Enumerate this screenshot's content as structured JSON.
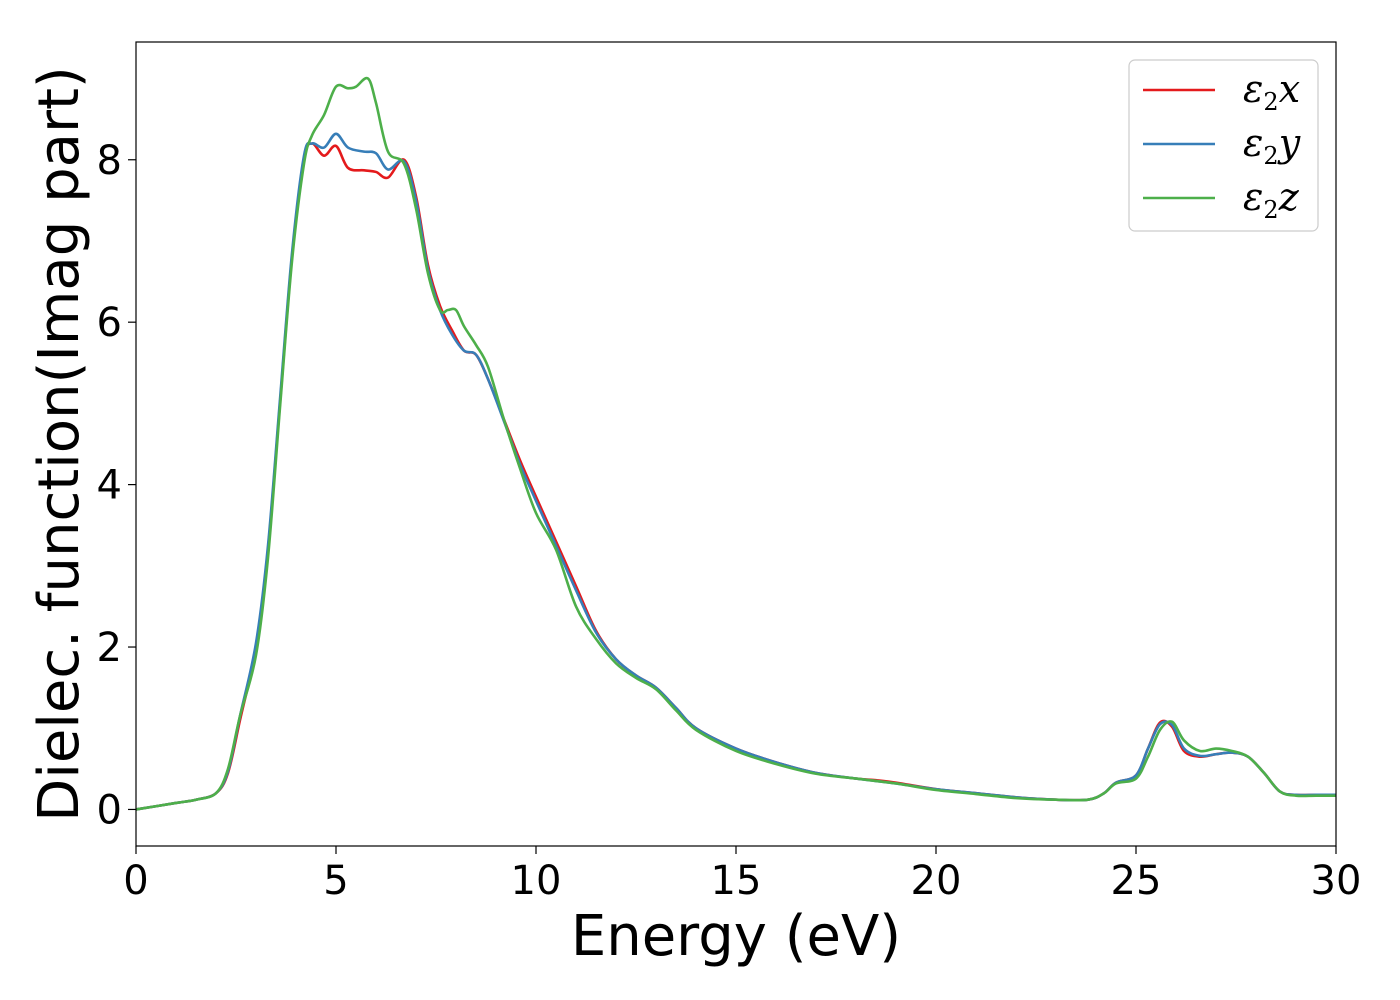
{
  "chart_data": {
    "type": "line",
    "title": "",
    "xlabel": "Energy (eV)",
    "ylabel": "Dielec. function(Imag part)",
    "xlim": [
      0,
      30
    ],
    "ylim": [
      -0.45,
      9.45
    ],
    "xticks": [
      0,
      5,
      10,
      15,
      20,
      25,
      30
    ],
    "yticks": [
      0,
      2,
      4,
      6,
      8
    ],
    "grid": false,
    "legend_position": "top-right",
    "series": [
      {
        "name": "ε2x",
        "legend_symbol": "ε",
        "legend_sub": "2",
        "legend_var": "x",
        "color": "#e41a1c",
        "x": [
          0,
          1,
          1.5,
          2.0,
          2.3,
          2.6,
          3.0,
          3.3,
          3.6,
          3.9,
          4.2,
          4.4,
          4.7,
          5.0,
          5.3,
          5.7,
          6.0,
          6.3,
          6.7,
          7.0,
          7.3,
          7.6,
          7.9,
          8.2,
          8.5,
          8.8,
          9.2,
          9.6,
          10.0,
          10.5,
          11.0,
          11.5,
          12.0,
          12.5,
          13.0,
          13.5,
          14.0,
          15.0,
          16.0,
          17.0,
          18.0,
          18.5,
          19.0,
          20.0,
          21.0,
          22.0,
          23.0,
          23.8,
          24.2,
          24.5,
          25.0,
          25.3,
          25.6,
          25.9,
          26.2,
          26.6,
          27.0,
          27.4,
          27.8,
          28.2,
          28.6,
          29.0,
          29.5,
          30.0
        ],
        "y": [
          0.0,
          0.08,
          0.12,
          0.2,
          0.45,
          1.1,
          2.0,
          3.2,
          5.0,
          6.8,
          8.0,
          8.2,
          8.05,
          8.17,
          7.9,
          7.87,
          7.85,
          7.78,
          8.0,
          7.55,
          6.7,
          6.2,
          5.9,
          5.65,
          5.6,
          5.3,
          4.8,
          4.3,
          3.85,
          3.3,
          2.75,
          2.2,
          1.85,
          1.65,
          1.5,
          1.25,
          1.0,
          0.75,
          0.58,
          0.45,
          0.38,
          0.36,
          0.33,
          0.25,
          0.2,
          0.15,
          0.12,
          0.12,
          0.2,
          0.33,
          0.42,
          0.75,
          1.07,
          1.02,
          0.72,
          0.65,
          0.68,
          0.7,
          0.65,
          0.45,
          0.22,
          0.18,
          0.18,
          0.18
        ]
      },
      {
        "name": "ε2y",
        "legend_symbol": "ε",
        "legend_sub": "2",
        "legend_var": "y",
        "color": "#377eb8",
        "x": [
          0,
          1,
          1.5,
          2.0,
          2.3,
          2.6,
          3.0,
          3.3,
          3.6,
          3.9,
          4.2,
          4.4,
          4.7,
          5.0,
          5.3,
          5.7,
          6.0,
          6.3,
          6.7,
          7.0,
          7.3,
          7.6,
          7.9,
          8.2,
          8.5,
          8.8,
          9.2,
          9.6,
          10.0,
          10.5,
          11.0,
          11.5,
          12.0,
          12.5,
          13.0,
          13.5,
          14.0,
          15.0,
          16.0,
          17.0,
          18.0,
          18.5,
          19.0,
          20.0,
          21.0,
          22.0,
          23.0,
          23.8,
          24.2,
          24.5,
          25.0,
          25.3,
          25.6,
          25.9,
          26.2,
          26.6,
          27.0,
          27.4,
          27.8,
          28.2,
          28.6,
          29.0,
          29.5,
          30.0
        ],
        "y": [
          0.0,
          0.08,
          0.12,
          0.2,
          0.47,
          1.15,
          2.05,
          3.25,
          5.05,
          6.85,
          8.05,
          8.2,
          8.15,
          8.32,
          8.15,
          8.1,
          8.08,
          7.88,
          7.98,
          7.5,
          6.65,
          6.15,
          5.85,
          5.65,
          5.6,
          5.3,
          4.78,
          4.25,
          3.8,
          3.25,
          2.7,
          2.18,
          1.85,
          1.65,
          1.5,
          1.25,
          1.0,
          0.75,
          0.58,
          0.45,
          0.38,
          0.35,
          0.32,
          0.25,
          0.2,
          0.15,
          0.12,
          0.12,
          0.2,
          0.33,
          0.42,
          0.75,
          1.05,
          1.04,
          0.75,
          0.66,
          0.68,
          0.7,
          0.65,
          0.45,
          0.22,
          0.18,
          0.18,
          0.18
        ]
      },
      {
        "name": "ε2z",
        "legend_symbol": "ε",
        "legend_sub": "2",
        "legend_var": "z",
        "color": "#4daf4a",
        "x": [
          0,
          1,
          1.5,
          2.0,
          2.3,
          2.6,
          3.0,
          3.3,
          3.6,
          3.9,
          4.2,
          4.4,
          4.7,
          5.0,
          5.3,
          5.5,
          5.8,
          6.0,
          6.3,
          6.7,
          7.0,
          7.3,
          7.6,
          7.8,
          8.0,
          8.2,
          8.5,
          8.8,
          9.2,
          9.6,
          10.0,
          10.5,
          11.0,
          11.5,
          12.0,
          12.5,
          13.0,
          13.5,
          14.0,
          15.0,
          16.0,
          17.0,
          18.0,
          19.0,
          20.0,
          21.0,
          22.0,
          23.0,
          23.8,
          24.2,
          24.5,
          25.0,
          25.3,
          25.6,
          25.9,
          26.2,
          26.6,
          27.0,
          27.4,
          27.8,
          28.2,
          28.6,
          29.0,
          29.5,
          30.0
        ],
        "y": [
          0.0,
          0.08,
          0.12,
          0.2,
          0.5,
          1.15,
          1.9,
          3.1,
          4.95,
          6.75,
          7.95,
          8.3,
          8.55,
          8.9,
          8.88,
          8.9,
          9.0,
          8.7,
          8.1,
          7.95,
          7.4,
          6.6,
          6.15,
          6.15,
          6.15,
          5.95,
          5.72,
          5.45,
          4.8,
          4.2,
          3.65,
          3.2,
          2.5,
          2.1,
          1.8,
          1.62,
          1.48,
          1.22,
          0.98,
          0.72,
          0.56,
          0.44,
          0.38,
          0.32,
          0.24,
          0.19,
          0.14,
          0.12,
          0.12,
          0.2,
          0.32,
          0.38,
          0.65,
          0.98,
          1.08,
          0.85,
          0.72,
          0.75,
          0.72,
          0.65,
          0.45,
          0.22,
          0.17,
          0.17,
          0.17
        ]
      }
    ]
  }
}
